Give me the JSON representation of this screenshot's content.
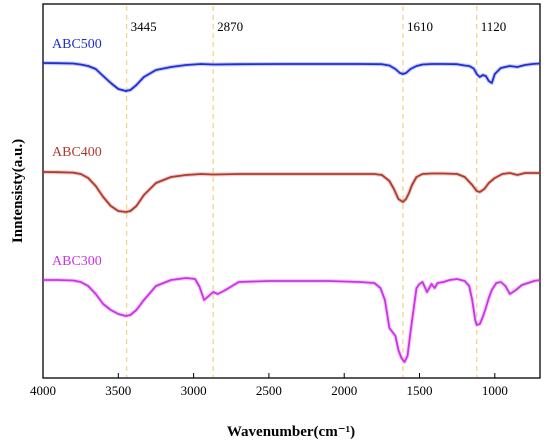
{
  "chart_data": {
    "type": "line",
    "xlabel": "Wavenumber(cm⁻¹)",
    "ylabel": "Inntensisty(a.u.)",
    "xlim": [
      4000,
      700
    ],
    "x_reversed": true,
    "x_ticks": [
      4000,
      3500,
      3000,
      2500,
      2000,
      1500,
      1000
    ],
    "y_ticks_shown": false,
    "peak_markers": [
      {
        "x": 3445,
        "label": "3445"
      },
      {
        "x": 2870,
        "label": "2870"
      },
      {
        "x": 1610,
        "label": "1610"
      },
      {
        "x": 1120,
        "label": "1120"
      }
    ],
    "series": [
      {
        "name": "ABC500",
        "color": "#1f2fd6",
        "x": [
          4000,
          3900,
          3800,
          3750,
          3700,
          3650,
          3600,
          3550,
          3500,
          3450,
          3420,
          3380,
          3330,
          3250,
          3150,
          3050,
          2950,
          2870,
          2700,
          2400,
          2100,
          1900,
          1750,
          1700,
          1660,
          1630,
          1610,
          1590,
          1560,
          1520,
          1480,
          1420,
          1340,
          1250,
          1200,
          1170,
          1140,
          1120,
          1100,
          1080,
          1060,
          1040,
          1020,
          1000,
          960,
          900,
          850,
          800,
          750,
          700
        ],
        "y": [
          0.0,
          0.2,
          0.5,
          1.5,
          3.0,
          6.0,
          13.0,
          20.0,
          26.0,
          28.0,
          27.0,
          22.0,
          14.0,
          7.0,
          4.0,
          2.0,
          1.0,
          1.5,
          1.2,
          1.0,
          1.0,
          1.0,
          1.2,
          2.5,
          6.0,
          10.0,
          11.0,
          10.0,
          6.0,
          3.0,
          1.5,
          1.0,
          1.0,
          1.2,
          2.5,
          3.0,
          5.5,
          11.0,
          14.0,
          12.0,
          13.0,
          18.0,
          20.0,
          11.0,
          5.0,
          3.0,
          4.0,
          2.0,
          1.0,
          0.5
        ]
      },
      {
        "name": "ABC400",
        "color": "#b03a2e",
        "x": [
          4000,
          3900,
          3800,
          3750,
          3700,
          3650,
          3600,
          3550,
          3500,
          3450,
          3420,
          3380,
          3330,
          3250,
          3150,
          3050,
          2950,
          2870,
          2700,
          2400,
          2100,
          1900,
          1800,
          1750,
          1700,
          1670,
          1640,
          1610,
          1590,
          1570,
          1550,
          1520,
          1480,
          1420,
          1340,
          1250,
          1200,
          1150,
          1120,
          1100,
          1070,
          1040,
          1000,
          950,
          900,
          850,
          800,
          750,
          700
        ],
        "y": [
          1.0,
          1.2,
          1.6,
          3.0,
          7.0,
          15.0,
          26.0,
          35.0,
          40.0,
          41.0,
          40.0,
          35.0,
          24.0,
          12.0,
          6.0,
          4.0,
          3.0,
          3.5,
          3.0,
          3.0,
          3.0,
          3.0,
          3.0,
          4.0,
          10.0,
          18.0,
          28.0,
          31.0,
          28.0,
          22.0,
          14.0,
          6.0,
          3.0,
          2.5,
          2.5,
          3.0,
          6.0,
          14.0,
          20.0,
          21.0,
          18.0,
          12.0,
          7.0,
          3.0,
          2.0,
          4.0,
          2.0,
          2.0,
          2.0
        ]
      },
      {
        "name": "ABC300",
        "color": "#cc33e6",
        "x": [
          4000,
          3900,
          3800,
          3750,
          3700,
          3650,
          3600,
          3550,
          3500,
          3450,
          3420,
          3380,
          3330,
          3250,
          3150,
          3050,
          2990,
          2960,
          2930,
          2900,
          2870,
          2840,
          2800,
          2700,
          2500,
          2300,
          2100,
          1900,
          1800,
          1760,
          1730,
          1700,
          1680,
          1660,
          1640,
          1620,
          1600,
          1580,
          1560,
          1540,
          1520,
          1500,
          1480,
          1450,
          1420,
          1400,
          1380,
          1340,
          1300,
          1250,
          1200,
          1170,
          1150,
          1130,
          1120,
          1100,
          1080,
          1060,
          1040,
          1020,
          990,
          960,
          930,
          900,
          860,
          820,
          780,
          740,
          700
        ],
        "y": [
          0.0,
          0.0,
          0.5,
          2.0,
          6.0,
          14.0,
          24.0,
          30.0,
          34.0,
          36.0,
          35.0,
          30.0,
          20.0,
          6.0,
          0.0,
          -2.0,
          -1.0,
          7.0,
          20.0,
          16.0,
          12.0,
          14.0,
          11.0,
          2.0,
          1.0,
          1.0,
          1.0,
          2.0,
          3.0,
          8.0,
          20.0,
          48.0,
          52.0,
          56.0,
          70.0,
          78.0,
          82.0,
          76.0,
          52.0,
          30.0,
          8.0,
          4.0,
          2.0,
          12.0,
          4.0,
          8.0,
          3.0,
          2.0,
          0.0,
          -1.0,
          1.0,
          6.0,
          20.0,
          40.0,
          45.0,
          44.0,
          37.0,
          28.0,
          18.0,
          10.0,
          3.0,
          2.0,
          6.0,
          14.0,
          10.0,
          5.0,
          3.0,
          1.0,
          0.0
        ]
      }
    ]
  }
}
